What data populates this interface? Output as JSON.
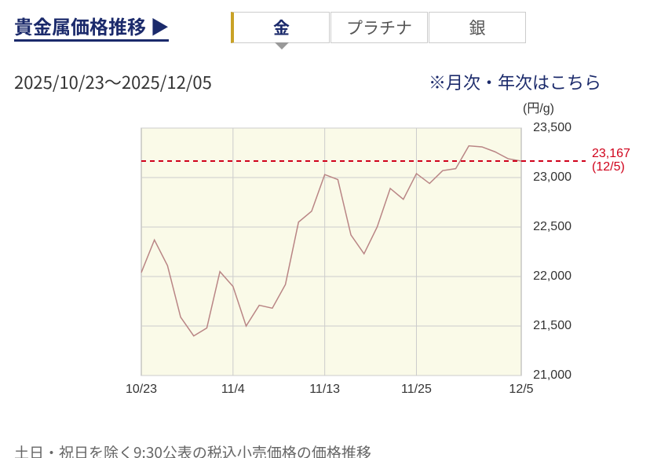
{
  "header": {
    "title": "貴金属価格推移",
    "arrow": "▶"
  },
  "tabs": [
    "金",
    "プラチナ",
    "銀"
  ],
  "date_range": "2025/10/23〜2025/12/05",
  "link": "※月次・年次はこちら",
  "note": "土日・祝日を除く9:30公表の税込小売価格の価格推移",
  "chart_data": {
    "type": "line",
    "y_unit": "(円/g)",
    "categories": [
      "10/23",
      null,
      null,
      null,
      null,
      null,
      null,
      "11/4",
      null,
      null,
      null,
      null,
      null,
      null,
      "11/13",
      null,
      null,
      null,
      null,
      null,
      null,
      "11/25",
      null,
      null,
      null,
      null,
      null,
      null,
      null,
      "12/5"
    ],
    "series": [
      {
        "color": "#b98585",
        "values": [
          22040,
          22370,
          22110,
          21590,
          21400,
          21480,
          22050,
          21900,
          21500,
          21710,
          21680,
          21920,
          22550,
          22660,
          23030,
          22980,
          22420,
          22230,
          22500,
          22890,
          22780,
          23040,
          22940,
          23070,
          23090,
          23320,
          23310,
          23260,
          23190,
          23167
        ]
      }
    ],
    "ylim": [
      21000,
      23500
    ],
    "yticks": [
      {
        "value": 21000,
        "label": "21,000"
      },
      {
        "value": 21500,
        "label": "21,500"
      },
      {
        "value": 22000,
        "label": "22,000"
      },
      {
        "value": 22500,
        "label": "22,500"
      },
      {
        "value": 23000,
        "label": "23,000"
      },
      {
        "value": 23500,
        "label": "23,500"
      }
    ],
    "grid": true,
    "reference": {
      "value": 23167,
      "label": "23,167",
      "date": "(12/5)",
      "color": "#d0021b"
    }
  }
}
